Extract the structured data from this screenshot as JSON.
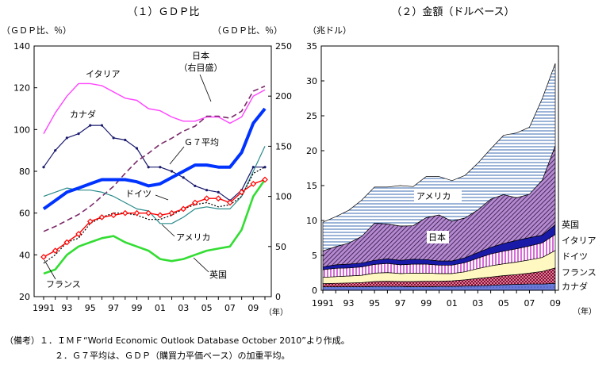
{
  "chart_data": [
    {
      "type": "line",
      "title": "（１）ＧＤＰ比",
      "left_axis": {
        "unit": "（ＧＤＰ比、％）",
        "ylim": [
          20,
          140
        ],
        "ticks": [
          "20",
          "40",
          "60",
          "80",
          "100",
          "120",
          "140"
        ]
      },
      "right_axis": {
        "unit": "（ＧＤＰ比、％）",
        "ylim": [
          0,
          250
        ],
        "ticks": [
          "0",
          "50",
          "100",
          "150",
          "200",
          "250"
        ]
      },
      "x": [
        1991,
        1992,
        1993,
        1994,
        1995,
        1996,
        1997,
        1998,
        1999,
        2000,
        2001,
        2002,
        2003,
        2004,
        2005,
        2006,
        2007,
        2008,
        2009,
        2010
      ],
      "xticks": [
        "1991",
        "93",
        "95",
        "97",
        "99",
        "01",
        "03",
        "05",
        "07",
        "09"
      ],
      "xunit": "（年）",
      "series": [
        {
          "name": "イタリア",
          "axis": "left",
          "color": "#ff44ff",
          "values": [
            98,
            108,
            116,
            122,
            122,
            121,
            118,
            115,
            114,
            110,
            109,
            106,
            104,
            104,
            106,
            106,
            103,
            106,
            116,
            119
          ]
        },
        {
          "name": "カナダ",
          "axis": "left",
          "color": "#1a1a6e",
          "values": [
            82,
            90,
            96,
            98,
            102,
            102,
            96,
            95,
            91,
            82,
            82,
            80,
            77,
            73,
            71,
            70,
            66,
            71,
            82,
            82
          ]
        },
        {
          "name": "日本",
          "label": "日本\n（右目盛）",
          "axis": "right",
          "color": "#7a2a6a",
          "values": [
            65,
            70,
            76,
            82,
            90,
            100,
            110,
            123,
            135,
            143,
            152,
            158,
            165,
            170,
            180,
            180,
            178,
            185,
            205,
            210
          ]
        },
        {
          "name": "Ｇ７平均",
          "axis": "left",
          "color": "#0033ff",
          "values": [
            62,
            66,
            70,
            72,
            74,
            76,
            76,
            76,
            75,
            73,
            74,
            77,
            80,
            83,
            83,
            82,
            82,
            89,
            103,
            110
          ]
        },
        {
          "name": "ドイツ",
          "axis": "left",
          "color": "#2a8a8a",
          "values": [
            68,
            70,
            72,
            71,
            71,
            70,
            68,
            65,
            62,
            61,
            55,
            55,
            58,
            62,
            63,
            62,
            62,
            68,
            80,
            92
          ]
        },
        {
          "name": "アメリカ",
          "axis": "left",
          "color": "#ff0000",
          "values": [
            39,
            42,
            46,
            50,
            56,
            58,
            59,
            60,
            60,
            60,
            59,
            60,
            62,
            65,
            67,
            67,
            65,
            70,
            74,
            76
          ]
        },
        {
          "name": "フランス",
          "axis": "left",
          "color": "#000000",
          "values": [
            36,
            40,
            46,
            48,
            55,
            58,
            60,
            60,
            59,
            57,
            57,
            59,
            62,
            64,
            65,
            63,
            64,
            68,
            79,
            82
          ]
        },
        {
          "name": "英国",
          "axis": "left",
          "color": "#33dd33",
          "values": [
            31,
            33,
            40,
            44,
            46,
            48,
            49,
            46,
            44,
            42,
            38,
            37,
            38,
            40,
            42,
            43,
            44,
            52,
            68,
            76
          ]
        }
      ]
    },
    {
      "type": "area",
      "stacked": true,
      "title": "（２）金額（ドルベース）",
      "ylabel": "（兆ドル）",
      "ylim": [
        0,
        35
      ],
      "yticks": [
        "0",
        "5",
        "10",
        "15",
        "20",
        "25",
        "30",
        "35"
      ],
      "x": [
        1991,
        1992,
        1993,
        1994,
        1995,
        1996,
        1997,
        1998,
        1999,
        2000,
        2001,
        2002,
        2003,
        2004,
        2005,
        2006,
        2007,
        2008,
        2009
      ],
      "xticks": [
        "1991",
        "93",
        "95",
        "97",
        "99",
        "01",
        "03",
        "05",
        "07",
        "09"
      ],
      "xunit": "（年）",
      "series": [
        {
          "name": "カナダ",
          "values": [
            0.5,
            0.5,
            0.5,
            0.5,
            0.55,
            0.55,
            0.55,
            0.5,
            0.5,
            0.55,
            0.55,
            0.6,
            0.65,
            0.7,
            0.8,
            0.85,
            0.9,
            0.9,
            1.0
          ]
        },
        {
          "name": "フランス",
          "values": [
            0.45,
            0.5,
            0.55,
            0.6,
            0.7,
            0.75,
            0.7,
            0.75,
            0.8,
            0.75,
            0.8,
            0.9,
            1.05,
            1.2,
            1.3,
            1.4,
            1.55,
            1.8,
            2.2
          ]
        },
        {
          "name": "ドイツ",
          "values": [
            0.9,
            0.95,
            1.0,
            1.05,
            1.2,
            1.25,
            1.15,
            1.2,
            1.15,
            1.1,
            1.05,
            1.15,
            1.4,
            1.6,
            1.7,
            1.8,
            1.9,
            2.0,
            2.5
          ]
        },
        {
          "name": "イタリア",
          "values": [
            1.1,
            1.2,
            1.15,
            1.2,
            1.25,
            1.3,
            1.25,
            1.3,
            1.3,
            1.2,
            1.2,
            1.3,
            1.5,
            1.7,
            1.8,
            1.9,
            2.0,
            2.1,
            2.3
          ]
        },
        {
          "name": "英国",
          "values": [
            0.4,
            0.5,
            0.55,
            0.55,
            0.6,
            0.65,
            0.65,
            0.7,
            0.65,
            0.6,
            0.6,
            0.7,
            0.8,
            0.95,
            1.1,
            1.2,
            1.2,
            1.1,
            1.4
          ]
        },
        {
          "name": "日本",
          "values": [
            2.3,
            2.6,
            3.0,
            3.8,
            5.3,
            5.0,
            4.9,
            4.8,
            6.0,
            6.6,
            5.7,
            5.7,
            6.1,
            6.9,
            7.0,
            6.1,
            6.2,
            7.9,
            11.3
          ]
        },
        {
          "name": "アメリカ",
          "values": [
            4.1,
            4.3,
            4.7,
            5.2,
            5.2,
            5.3,
            5.8,
            5.6,
            5.9,
            5.5,
            5.8,
            6.1,
            6.7,
            7.2,
            8.5,
            9.3,
            9.6,
            11.7,
            11.8
          ]
        }
      ]
    }
  ],
  "notes": [
    "（備考）１．ＩＭＦ“World Economic Outlook Database October 2010”より作成。",
    "２．Ｇ７平均は、ＧＤＰ（購買力平価ベース）の加重平均。"
  ]
}
